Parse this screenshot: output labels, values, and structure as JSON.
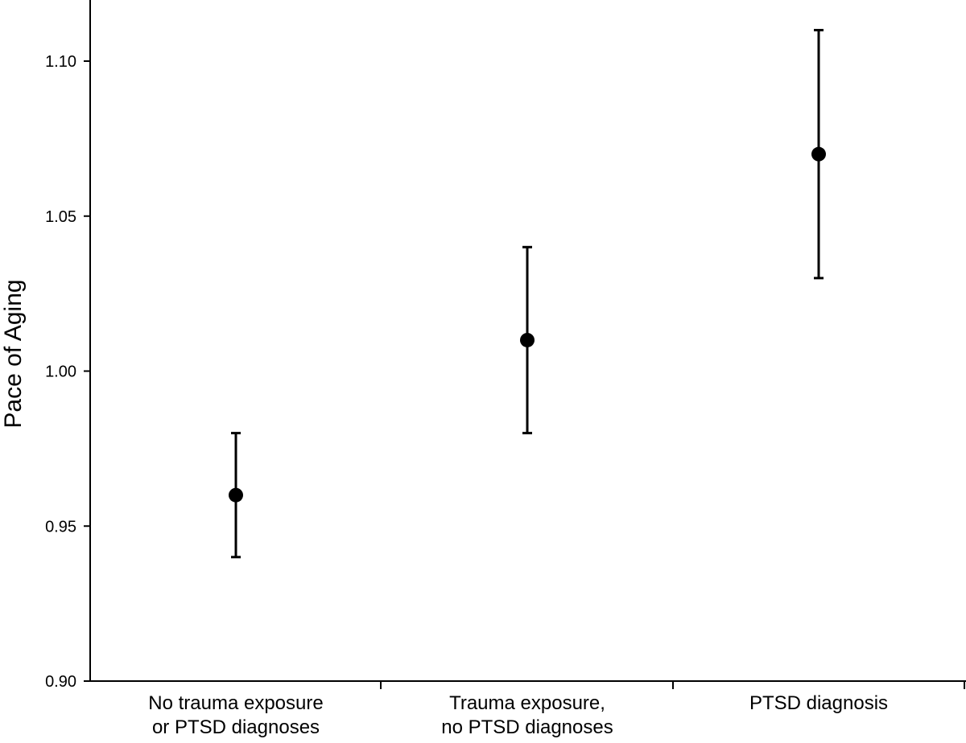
{
  "chart_data": {
    "type": "scatter",
    "title": "",
    "xlabel": "",
    "ylabel": "Pace of Aging",
    "ylim": [
      0.9,
      1.12
    ],
    "yticks": [
      "0.90",
      "0.95",
      "1.00",
      "1.05",
      "1.10"
    ],
    "grid": false,
    "categories": [
      [
        "No trauma exposure",
        "or PTSD diagnoses"
      ],
      [
        "Trauma exposure,",
        "no PTSD diagnoses"
      ],
      [
        "PTSD diagnosis"
      ]
    ],
    "series": [
      {
        "values": [
          0.96,
          1.01,
          1.07
        ],
        "error_low": [
          0.94,
          0.98,
          1.03
        ],
        "error_high": [
          0.98,
          1.04,
          1.11
        ]
      }
    ],
    "colors": {
      "marker": "#000000",
      "axis": "#000000"
    }
  }
}
